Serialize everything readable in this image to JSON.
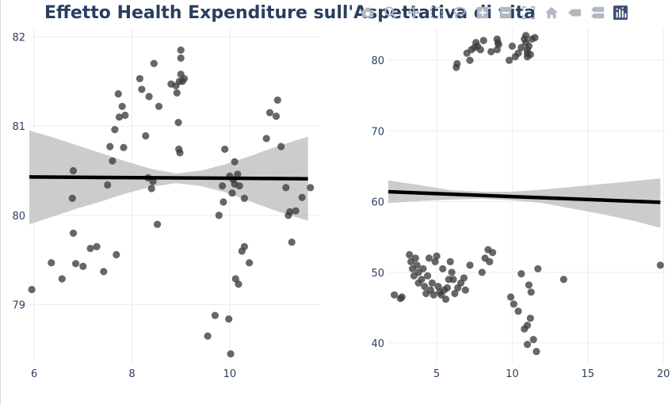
{
  "title": "Effetto Health Expenditure sull'Aspettativa di vita",
  "modebar": {
    "icons": [
      "camera-icon",
      "zoom-icon",
      "pan-icon",
      "box-select-icon",
      "lasso-icon",
      "zoom-in-icon",
      "zoom-out-icon",
      "autoscale-icon",
      "home-icon",
      "spike-lines-icon",
      "compare-hover-icon",
      "plotly-logo-icon"
    ]
  },
  "colors": {
    "marker": "#3c3c3c",
    "line": "#000000",
    "band": "#bfbfbf",
    "grid": "#ebebeb",
    "text": "#2a3f5f"
  },
  "chart_data": [
    {
      "type": "scatter",
      "title": "",
      "xlabel": "",
      "ylabel": "",
      "xlim": [
        5.9,
        11.85
      ],
      "ylim": [
        78.35,
        82.1
      ],
      "xticks": [
        "6",
        "8",
        "10"
      ],
      "yticks": [
        "79",
        "80",
        "81",
        "82"
      ],
      "grid": true,
      "points": [
        [
          5.95,
          79.17
        ],
        [
          6.35,
          79.47
        ],
        [
          6.57,
          79.29
        ],
        [
          6.8,
          80.5
        ],
        [
          6.78,
          80.19
        ],
        [
          6.8,
          79.8
        ],
        [
          6.85,
          79.46
        ],
        [
          7.0,
          79.43
        ],
        [
          7.15,
          79.63
        ],
        [
          7.28,
          79.65
        ],
        [
          7.42,
          79.37
        ],
        [
          7.5,
          80.34
        ],
        [
          7.55,
          80.77
        ],
        [
          7.6,
          80.61
        ],
        [
          7.68,
          79.56
        ],
        [
          7.65,
          80.96
        ],
        [
          7.72,
          81.36
        ],
        [
          7.74,
          81.1
        ],
        [
          7.8,
          81.22
        ],
        [
          7.83,
          80.76
        ],
        [
          7.86,
          81.12
        ],
        [
          8.16,
          81.53
        ],
        [
          8.2,
          81.41
        ],
        [
          8.28,
          80.89
        ],
        [
          8.35,
          81.33
        ],
        [
          8.33,
          80.42
        ],
        [
          8.4,
          80.3
        ],
        [
          8.45,
          81.7
        ],
        [
          8.43,
          80.38
        ],
        [
          8.52,
          79.9
        ],
        [
          8.55,
          81.22
        ],
        [
          8.8,
          81.47
        ],
        [
          8.9,
          81.45
        ],
        [
          8.92,
          81.37
        ],
        [
          8.95,
          81.04
        ],
        [
          8.96,
          80.74
        ],
        [
          8.98,
          80.7
        ],
        [
          8.97,
          81.5
        ],
        [
          9.0,
          81.58
        ],
        [
          9.0,
          81.76
        ],
        [
          9.0,
          81.85
        ],
        [
          9.03,
          81.5
        ],
        [
          9.07,
          81.53
        ],
        [
          9.55,
          78.65
        ],
        [
          9.7,
          78.88
        ],
        [
          9.78,
          80.0
        ],
        [
          9.85,
          80.33
        ],
        [
          9.87,
          80.15
        ],
        [
          9.9,
          80.74
        ],
        [
          9.98,
          78.84
        ],
        [
          10.0,
          80.44
        ],
        [
          10.02,
          78.45
        ],
        [
          10.05,
          80.25
        ],
        [
          10.07,
          80.4
        ],
        [
          10.1,
          80.6
        ],
        [
          10.1,
          80.35
        ],
        [
          10.12,
          79.29
        ],
        [
          10.16,
          80.46
        ],
        [
          10.18,
          79.23
        ],
        [
          10.2,
          80.33
        ],
        [
          10.25,
          79.6
        ],
        [
          10.3,
          79.65
        ],
        [
          10.3,
          80.19
        ],
        [
          10.4,
          79.47
        ],
        [
          10.75,
          80.86
        ],
        [
          10.82,
          81.15
        ],
        [
          10.95,
          81.11
        ],
        [
          10.98,
          81.29
        ],
        [
          11.05,
          80.77
        ],
        [
          11.15,
          80.31
        ],
        [
          11.2,
          80.0
        ],
        [
          11.23,
          80.04
        ],
        [
          11.27,
          79.7
        ],
        [
          11.35,
          80.05
        ],
        [
          11.48,
          80.2
        ],
        [
          11.65,
          80.31
        ]
      ],
      "fit_line": [
        [
          5.9,
          80.43
        ],
        [
          11.6,
          80.41
        ]
      ],
      "band": {
        "x": [
          5.9,
          6.4,
          6.9,
          7.4,
          7.9,
          8.4,
          8.9,
          9.4,
          9.9,
          10.4,
          10.9,
          11.3,
          11.6
        ],
        "upper": [
          80.95,
          80.87,
          80.78,
          80.69,
          80.6,
          80.52,
          80.47,
          80.5,
          80.57,
          80.66,
          80.76,
          80.83,
          80.88
        ],
        "lower": [
          79.9,
          79.99,
          80.08,
          80.16,
          80.25,
          80.32,
          80.36,
          80.33,
          80.26,
          80.16,
          80.06,
          79.99,
          79.94
        ]
      }
    },
    {
      "type": "scatter",
      "title": "",
      "xlabel": "",
      "ylabel": "",
      "xlim": [
        1.8,
        20.15
      ],
      "ylim": [
        37.2,
        84.6
      ],
      "xticks": [
        "5",
        "10",
        "15",
        "20"
      ],
      "yticks": [
        "40",
        "50",
        "60",
        "70",
        "80"
      ],
      "grid": true,
      "points": [
        [
          6.3,
          79.0
        ],
        [
          6.35,
          79.5
        ],
        [
          7.0,
          81.0
        ],
        [
          7.2,
          80.0
        ],
        [
          7.3,
          81.5
        ],
        [
          7.5,
          81.8
        ],
        [
          7.6,
          82.5
        ],
        [
          7.7,
          82.0
        ],
        [
          7.9,
          81.5
        ],
        [
          8.1,
          82.8
        ],
        [
          8.6,
          81.2
        ],
        [
          9.0,
          83.0
        ],
        [
          9.05,
          82.5
        ],
        [
          9.1,
          82.2
        ],
        [
          9.0,
          81.5
        ],
        [
          9.8,
          80.0
        ],
        [
          10.0,
          82.0
        ],
        [
          10.2,
          80.5
        ],
        [
          10.4,
          81.0
        ],
        [
          10.6,
          81.8
        ],
        [
          10.8,
          83.0
        ],
        [
          10.9,
          82.5
        ],
        [
          11.0,
          81.5
        ],
        [
          11.0,
          80.5
        ],
        [
          11.1,
          82.0
        ],
        [
          11.3,
          83.0
        ],
        [
          11.5,
          83.2
        ],
        [
          10.9,
          83.5
        ],
        [
          11.0,
          81.0
        ],
        [
          11.2,
          80.8
        ],
        [
          2.2,
          46.8
        ],
        [
          2.6,
          46.3
        ],
        [
          2.7,
          46.5
        ],
        [
          3.2,
          52.5
        ],
        [
          3.3,
          51.5
        ],
        [
          3.4,
          50.5
        ],
        [
          3.5,
          49.5
        ],
        [
          3.6,
          52.0
        ],
        [
          3.7,
          51.0
        ],
        [
          3.8,
          48.5
        ],
        [
          3.8,
          50.0
        ],
        [
          4.0,
          49.0
        ],
        [
          4.1,
          50.5
        ],
        [
          4.2,
          48.0
        ],
        [
          4.3,
          47.0
        ],
        [
          4.4,
          49.5
        ],
        [
          4.5,
          52.0
        ],
        [
          4.6,
          47.5
        ],
        [
          4.7,
          48.5
        ],
        [
          4.8,
          46.8
        ],
        [
          4.9,
          51.5
        ],
        [
          5.0,
          52.3
        ],
        [
          5.1,
          48.0
        ],
        [
          5.2,
          47.2
        ],
        [
          5.3,
          46.8
        ],
        [
          5.4,
          50.5
        ],
        [
          5.5,
          47.5
        ],
        [
          5.6,
          46.2
        ],
        [
          5.7,
          47.8
        ],
        [
          5.8,
          49.0
        ],
        [
          5.9,
          51.5
        ],
        [
          6.0,
          50.0
        ],
        [
          6.1,
          49.0
        ],
        [
          6.2,
          47.0
        ],
        [
          6.4,
          47.8
        ],
        [
          6.6,
          48.5
        ],
        [
          6.8,
          49.2
        ],
        [
          6.9,
          47.5
        ],
        [
          7.2,
          51.0
        ],
        [
          8.0,
          50.0
        ],
        [
          8.2,
          52.0
        ],
        [
          8.4,
          53.2
        ],
        [
          8.5,
          51.5
        ],
        [
          8.7,
          52.8
        ],
        [
          9.9,
          46.5
        ],
        [
          10.1,
          45.5
        ],
        [
          10.4,
          44.5
        ],
        [
          10.6,
          49.8
        ],
        [
          10.8,
          42.0
        ],
        [
          11.0,
          39.8
        ],
        [
          11.0,
          42.5
        ],
        [
          11.1,
          48.2
        ],
        [
          11.2,
          43.5
        ],
        [
          11.25,
          47.2
        ],
        [
          11.4,
          40.5
        ],
        [
          11.6,
          38.8
        ],
        [
          11.7,
          50.5
        ],
        [
          13.4,
          49.0
        ],
        [
          19.8,
          51.0
        ]
      ],
      "fit_line": [
        [
          1.8,
          61.4
        ],
        [
          19.8,
          59.9
        ]
      ],
      "band": {
        "x": [
          1.8,
          4.0,
          6.0,
          8.0,
          10.0,
          12.0,
          14.0,
          16.0,
          18.0,
          19.8
        ],
        "upper": [
          63.0,
          62.3,
          61.6,
          61.4,
          61.4,
          61.7,
          62.1,
          62.5,
          62.9,
          63.3
        ],
        "lower": [
          59.8,
          60.1,
          60.3,
          60.4,
          60.2,
          59.8,
          59.0,
          58.2,
          57.3,
          56.3
        ]
      }
    }
  ]
}
